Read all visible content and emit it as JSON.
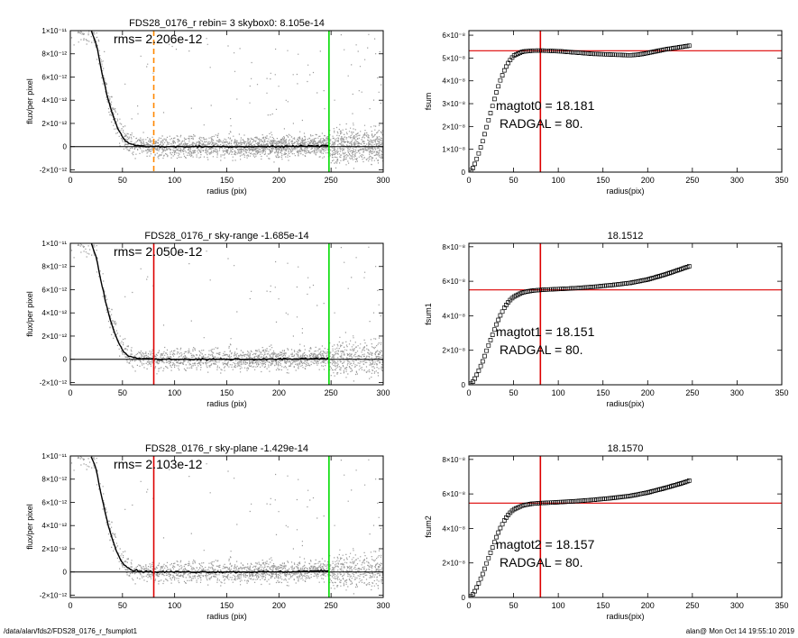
{
  "footer": {
    "left": "/data/alan/fds2/FDS28_0176_r_fsumplot1",
    "right": "alan@  Mon Oct 14 19:55:10 2019"
  },
  "colors": {
    "scatter": "#9a9a9a",
    "profile": "#000000",
    "green_line": "#00dd00",
    "red_line": "#dd0000",
    "orange_dashed": "#ff8800"
  },
  "chart_data": [
    {
      "type": "scatter",
      "title": "FDS28_0176_r rebin= 3    skybox0:  8.105e-14",
      "annotation": "rms= 2.206e-12",
      "xlabel": "radius (pix)",
      "ylabel": "flux/per pixel",
      "xlim": [
        0,
        300
      ],
      "ylim": [
        -2.2e-12,
        1e-11
      ],
      "xticks": [
        "0",
        "50",
        "100",
        "150",
        "200",
        "250",
        "300"
      ],
      "yticks": [
        "-2×10⁻¹²",
        "0",
        "2×10⁻¹²",
        "4×10⁻¹²",
        "6×10⁻¹²",
        "8×10⁻¹²",
        "1×10⁻¹¹"
      ],
      "vlines": [
        {
          "x": 80,
          "color": "orange",
          "style": "dashed"
        },
        {
          "x": 248,
          "color": "green",
          "style": "solid"
        }
      ],
      "hline": 0,
      "profile": {
        "radius": [
          20,
          25,
          30,
          35,
          40,
          45,
          50,
          55,
          60,
          70,
          80,
          100,
          150,
          200,
          248
        ],
        "flux": [
          1e-11,
          8.8e-12,
          6.5e-12,
          4.5e-12,
          2.9e-12,
          1.7e-12,
          8e-13,
          3.5e-13,
          1.5e-13,
          5e-14,
          0,
          0,
          0,
          0,
          1e-13
        ]
      }
    },
    {
      "type": "line",
      "title": "",
      "annotation_lines": [
        "magtot0 =  18.181",
        "RADGAL =     80."
      ],
      "xlabel": "radius(pix)",
      "ylabel": "fsum",
      "xlim": [
        0,
        350
      ],
      "ylim": [
        0,
        6.2e-08
      ],
      "xticks": [
        "0",
        "50",
        "100",
        "150",
        "200",
        "250",
        "300",
        "350"
      ],
      "yticks": [
        "0",
        "1×10⁻⁸",
        "2×10⁻⁸",
        "3×10⁻⁸",
        "4×10⁻⁸",
        "5×10⁻⁸",
        "6×10⁻⁸"
      ],
      "vline": 80,
      "hline": 5.32e-08,
      "series": {
        "radius": [
          0,
          5,
          10,
          15,
          20,
          25,
          30,
          35,
          40,
          45,
          50,
          60,
          70,
          80,
          100,
          120,
          140,
          160,
          180,
          190,
          200,
          220,
          240,
          248
        ],
        "fsum": [
          0,
          2e-09,
          7e-09,
          1.3e-08,
          2e-08,
          2.7e-08,
          3.4e-08,
          4e-08,
          4.5e-08,
          4.85e-08,
          5.1e-08,
          5.28e-08,
          5.32e-08,
          5.33e-08,
          5.3e-08,
          5.24e-08,
          5.18e-08,
          5.15e-08,
          5.12e-08,
          5.15e-08,
          5.22e-08,
          5.38e-08,
          5.5e-08,
          5.55e-08
        ]
      }
    },
    {
      "type": "scatter",
      "title": "FDS28_0176_r sky-range -1.685e-14",
      "annotation": "rms= 2.050e-12",
      "xlabel": "radius (pix)",
      "ylabel": "flux/per pixel",
      "xlim": [
        0,
        300
      ],
      "ylim": [
        -2.2e-12,
        1e-11
      ],
      "xticks": [
        "0",
        "50",
        "100",
        "150",
        "200",
        "250",
        "300"
      ],
      "yticks": [
        "-2×10⁻¹²",
        "0",
        "2×10⁻¹²",
        "4×10⁻¹²",
        "6×10⁻¹²",
        "8×10⁻¹²",
        "1×10⁻¹¹"
      ],
      "vlines": [
        {
          "x": 80,
          "color": "red",
          "style": "solid"
        },
        {
          "x": 248,
          "color": "green",
          "style": "solid"
        }
      ],
      "hline": 0,
      "profile": {
        "radius": [
          20,
          25,
          30,
          35,
          40,
          45,
          50,
          55,
          60,
          70,
          80,
          100,
          150,
          200,
          248
        ],
        "flux": [
          1e-11,
          8.8e-12,
          6.5e-12,
          4.5e-12,
          2.9e-12,
          1.7e-12,
          8e-13,
          3.5e-13,
          1.5e-13,
          5e-14,
          0,
          0,
          0,
          0,
          1e-13
        ]
      }
    },
    {
      "type": "line",
      "title": "18.1512",
      "annotation_lines": [
        "magtot1 =  18.151",
        "RADGAL =     80."
      ],
      "xlabel": "radius(pix)",
      "ylabel": "fsum1",
      "xlim": [
        0,
        350
      ],
      "ylim": [
        0,
        8.2e-08
      ],
      "xticks": [
        "0",
        "50",
        "100",
        "150",
        "200",
        "250",
        "300",
        "350"
      ],
      "yticks": [
        "0",
        "2×10⁻⁸",
        "4×10⁻⁸",
        "6×10⁻⁸",
        "8×10⁻⁸"
      ],
      "vline": 80,
      "hline": 5.5e-08,
      "series": {
        "radius": [
          0,
          5,
          10,
          15,
          20,
          25,
          30,
          35,
          40,
          45,
          50,
          60,
          70,
          80,
          100,
          120,
          140,
          160,
          180,
          200,
          220,
          240,
          248
        ],
        "fsum": [
          0,
          2e-09,
          7e-09,
          1.3e-08,
          2e-08,
          2.7e-08,
          3.4e-08,
          4e-08,
          4.5e-08,
          4.85e-08,
          5.1e-08,
          5.35e-08,
          5.45e-08,
          5.5e-08,
          5.55e-08,
          5.6e-08,
          5.68e-08,
          5.78e-08,
          5.9e-08,
          6.1e-08,
          6.4e-08,
          6.75e-08,
          6.9e-08
        ]
      }
    },
    {
      "type": "scatter",
      "title": "FDS28_0176_r sky-plane -1.429e-14",
      "annotation": "rms= 2.103e-12",
      "xlabel": "radius (pix)",
      "ylabel": "flux/per pixel",
      "xlim": [
        0,
        300
      ],
      "ylim": [
        -2.2e-12,
        1e-11
      ],
      "xticks": [
        "0",
        "50",
        "100",
        "150",
        "200",
        "250",
        "300"
      ],
      "yticks": [
        "-2×10⁻¹²",
        "0",
        "2×10⁻¹²",
        "4×10⁻¹²",
        "6×10⁻¹²",
        "8×10⁻¹²",
        "1×10⁻¹¹"
      ],
      "vlines": [
        {
          "x": 80,
          "color": "red",
          "style": "solid"
        },
        {
          "x": 248,
          "color": "green",
          "style": "solid"
        }
      ],
      "hline": 0,
      "profile": {
        "radius": [
          20,
          25,
          30,
          35,
          40,
          45,
          50,
          55,
          60,
          70,
          80,
          100,
          150,
          200,
          248
        ],
        "flux": [
          1e-11,
          8.8e-12,
          6.5e-12,
          4.5e-12,
          2.9e-12,
          1.7e-12,
          8e-13,
          3.5e-13,
          1.5e-13,
          5e-14,
          0,
          0,
          0,
          0,
          1e-13
        ]
      }
    },
    {
      "type": "line",
      "title": "18.1570",
      "annotation_lines": [
        "magtot2 =  18.157",
        "RADGAL =     80."
      ],
      "xlabel": "radius(pix)",
      "ylabel": "fsum2",
      "xlim": [
        0,
        350
      ],
      "ylim": [
        0,
        8.2e-08
      ],
      "xticks": [
        "0",
        "50",
        "100",
        "150",
        "200",
        "250",
        "300",
        "350"
      ],
      "yticks": [
        "0",
        "2×10⁻⁸",
        "4×10⁻⁸",
        "6×10⁻⁸",
        "8×10⁻⁸"
      ],
      "vline": 80,
      "hline": 5.47e-08,
      "series": {
        "radius": [
          0,
          5,
          10,
          15,
          20,
          25,
          30,
          35,
          40,
          45,
          50,
          60,
          70,
          80,
          100,
          120,
          140,
          160,
          180,
          200,
          220,
          240,
          248
        ],
        "fsum": [
          0,
          2e-09,
          7e-09,
          1.3e-08,
          2e-08,
          2.7e-08,
          3.4e-08,
          4e-08,
          4.5e-08,
          4.85e-08,
          5.1e-08,
          5.33e-08,
          5.43e-08,
          5.47e-08,
          5.52e-08,
          5.58e-08,
          5.66e-08,
          5.76e-08,
          5.88e-08,
          6.08e-08,
          6.35e-08,
          6.65e-08,
          6.8e-08
        ]
      }
    }
  ]
}
